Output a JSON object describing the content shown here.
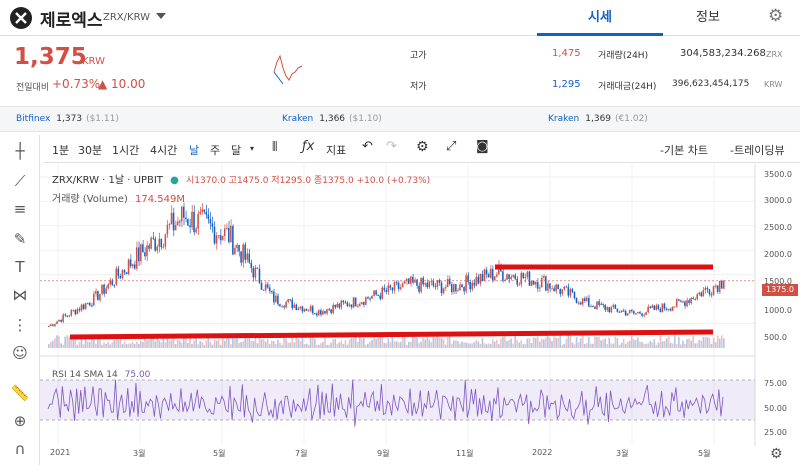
{
  "header": {
    "coin_name": "제로엑스",
    "pair": "ZRX/KRW",
    "tabs": [
      "시세",
      "정보"
    ],
    "logo_icon": "zrx-logo-icon",
    "settings_icon": "gear-icon"
  },
  "price": {
    "current": "1,375",
    "unit": "KRW",
    "change_label": "전일대비",
    "change_pct": "+0.73%",
    "change_abs": "▲ 10.00",
    "color_up": "#d24f45"
  },
  "stats": {
    "high_label": "고가",
    "high_value": "1,475",
    "low_label": "저가",
    "low_value": "1,295",
    "volume_label": "거래량(24H)",
    "volume_value": "304,583,234.268",
    "volume_unit": "ZRX",
    "amount_label": "거래대금(24H)",
    "amount_value": "396,623,454,175",
    "amount_unit": "KRW"
  },
  "ticker": [
    {
      "name": "Bitfinex",
      "price": "1,373",
      "sub": "($1.11)"
    },
    {
      "name": "Kraken",
      "price": "1,366",
      "sub": "($1.10)"
    },
    {
      "name": "Kraken",
      "price": "1,369",
      "sub": "(€1.02)"
    }
  ],
  "toolbar": {
    "intervals": [
      "1분",
      "30분",
      "1시간",
      "4시간",
      "날",
      "주",
      "달"
    ],
    "active_interval": "날",
    "indicator_label": "지표",
    "basic_chart": "-기본 차트",
    "trading_view": "-트레이딩뷰"
  },
  "chart": {
    "symbol": "ZRX/KRW · 1날 · UPBIT",
    "ohlc": "시1370.0 고1475.0 저1295.0 종1375.0 +10.0 (+0.73%)",
    "volume_legend": "거래량 (Volume)",
    "volume_value": "174.549M",
    "rsi_legend": "RSI 14 SMA 14",
    "rsi_value": "75.00",
    "price_axis": [
      "3500.0",
      "3000.0",
      "2500.0",
      "2000.0",
      "1500.0",
      "1000.0",
      "500.0"
    ],
    "rsi_axis": [
      "75.00",
      "50.00",
      "25.00"
    ],
    "x_axis": [
      "2021",
      "3월",
      "5월",
      "7월",
      "9월",
      "11월",
      "2022",
      "3월",
      "5월"
    ],
    "last_price_tag": "1375.0"
  },
  "chart_data": {
    "type": "line",
    "x": [
      "2021-01",
      "2021-02",
      "2021-03",
      "2021-04",
      "2021-05",
      "2021-06",
      "2021-07",
      "2021-08",
      "2021-09",
      "2021-10",
      "2021-11",
      "2021-12",
      "2022-01",
      "2022-02",
      "2022-03",
      "2022-04"
    ],
    "series": [
      {
        "values": [
          450,
          1000,
          1900,
          2700,
          2300,
          1000,
          750,
          1000,
          1300,
          1250,
          1550,
          1350,
          900,
          700,
          900,
          1375
        ]
      }
    ],
    "ylim": [
      0,
      3600
    ]
  }
}
